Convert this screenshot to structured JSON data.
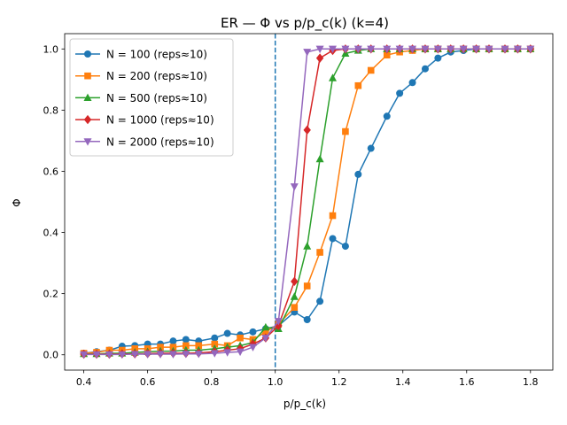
{
  "chart_data": {
    "type": "line",
    "title": "ER — Φ vs p/p_c(k)  (k=4)",
    "xlabel": "p/p_c(k)",
    "ylabel": "Φ",
    "xlim": [
      0.34,
      1.87
    ],
    "ylim": [
      -0.05,
      1.05
    ],
    "xticks": [
      "0.4",
      "0.6",
      "0.8",
      "1.0",
      "1.2",
      "1.4",
      "1.6",
      "1.8"
    ],
    "yticks": [
      "0.0",
      "0.2",
      "0.4",
      "0.6",
      "0.8",
      "1.0"
    ],
    "vline": {
      "x": 1.0,
      "color": "#1f77b4",
      "style": "dashed"
    },
    "legend_position": "top-left",
    "x": [
      0.4,
      0.44,
      0.48,
      0.52,
      0.56,
      0.6,
      0.64,
      0.68,
      0.72,
      0.76,
      0.81,
      0.85,
      0.89,
      0.93,
      0.97,
      1.01,
      1.06,
      1.1,
      1.14,
      1.18,
      1.22,
      1.26,
      1.3,
      1.35,
      1.39,
      1.43,
      1.47,
      1.51,
      1.55,
      1.59,
      1.63,
      1.67,
      1.72,
      1.76,
      1.8
    ],
    "series": [
      {
        "name": "N = 100 (reps≈10)",
        "color": "#1f77b4",
        "marker": "circle",
        "values": [
          0.005,
          0.01,
          0.015,
          0.028,
          0.03,
          0.035,
          0.035,
          0.045,
          0.05,
          0.045,
          0.055,
          0.07,
          0.065,
          0.075,
          0.085,
          0.095,
          0.14,
          0.115,
          0.175,
          0.38,
          0.355,
          0.59,
          0.675,
          0.78,
          0.855,
          0.89,
          0.935,
          0.97,
          0.99,
          0.995,
          1.0,
          1.0,
          1.0,
          1.0,
          1.0
        ]
      },
      {
        "name": "N = 200 (reps≈10)",
        "color": "#ff7f0e",
        "marker": "square",
        "values": [
          0.005,
          0.008,
          0.015,
          0.015,
          0.02,
          0.02,
          0.025,
          0.025,
          0.03,
          0.03,
          0.035,
          0.03,
          0.055,
          0.05,
          0.075,
          0.1,
          0.155,
          0.225,
          0.335,
          0.455,
          0.73,
          0.88,
          0.93,
          0.98,
          0.99,
          0.995,
          1.0,
          1.0,
          1.0,
          1.0,
          1.0,
          1.0,
          1.0,
          1.0,
          1.0
        ]
      },
      {
        "name": "N = 500 (reps≈10)",
        "color": "#2ca02c",
        "marker": "triangle-up",
        "values": [
          0.003,
          0.003,
          0.005,
          0.005,
          0.008,
          0.01,
          0.012,
          0.012,
          0.015,
          0.015,
          0.02,
          0.025,
          0.03,
          0.04,
          0.09,
          0.085,
          0.19,
          0.355,
          0.64,
          0.905,
          0.985,
          0.995,
          1.0,
          1.0,
          1.0,
          1.0,
          1.0,
          1.0,
          1.0,
          1.0,
          1.0,
          1.0,
          1.0,
          1.0,
          1.0
        ]
      },
      {
        "name": "N = 1000 (reps≈10)",
        "color": "#d62728",
        "marker": "diamond",
        "values": [
          0.002,
          0.002,
          0.002,
          0.003,
          0.003,
          0.004,
          0.005,
          0.005,
          0.005,
          0.006,
          0.01,
          0.015,
          0.02,
          0.035,
          0.055,
          0.095,
          0.24,
          0.735,
          0.97,
          0.995,
          1.0,
          1.0,
          1.0,
          1.0,
          1.0,
          1.0,
          1.0,
          1.0,
          1.0,
          1.0,
          1.0,
          1.0,
          1.0,
          1.0,
          1.0
        ]
      },
      {
        "name": "N = 2000 (reps≈10)",
        "color": "#9467bd",
        "marker": "triangle-down",
        "values": [
          0.001,
          0.001,
          0.001,
          0.001,
          0.002,
          0.002,
          0.002,
          0.002,
          0.003,
          0.003,
          0.005,
          0.008,
          0.01,
          0.025,
          0.055,
          0.11,
          0.55,
          0.99,
          1.0,
          1.0,
          1.0,
          1.0,
          1.0,
          1.0,
          1.0,
          1.0,
          1.0,
          1.0,
          1.0,
          1.0,
          1.0,
          1.0,
          1.0,
          1.0,
          1.0
        ]
      }
    ]
  }
}
